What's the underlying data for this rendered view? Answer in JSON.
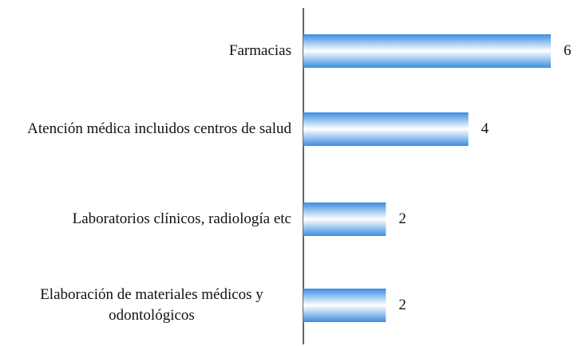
{
  "chart_data": {
    "type": "bar",
    "orientation": "horizontal",
    "categories": [
      "Farmacias",
      "Atención médica incluidos centros de salud",
      "Laboratorios clínicos, radiología etc",
      "Elaboración de materiales médicos y odontológicos"
    ],
    "values": [
      6,
      4,
      2,
      2
    ],
    "color": "#3a8ee0"
  }
}
